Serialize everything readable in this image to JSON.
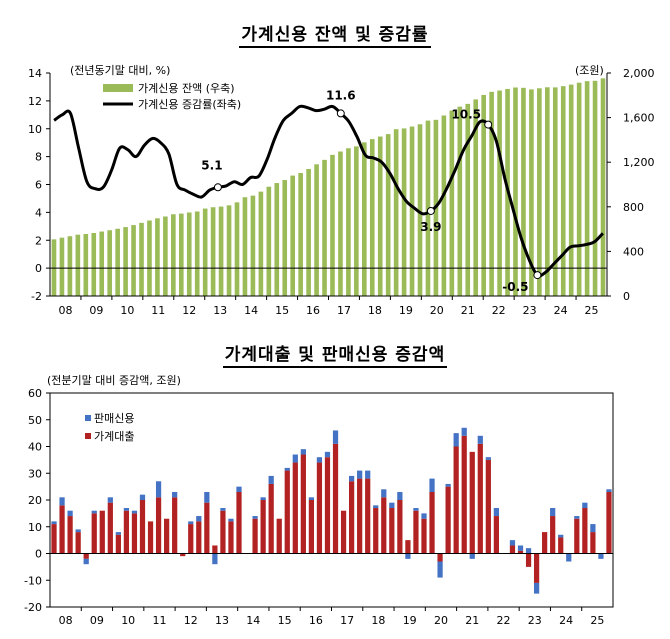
{
  "chart_data": [
    {
      "type": "bar+line",
      "title": "가계신용 잔액 및 증감률",
      "ylabel_left": "(전년동기말 대비, %)",
      "ylabel_right": "(조원)",
      "ylim_left": [
        -2,
        14
      ],
      "ylim_right": [
        0,
        2000
      ],
      "yticks_left": [
        "-2",
        "0",
        "2",
        "4",
        "6",
        "8",
        "10",
        "12",
        "14"
      ],
      "yticks_right": [
        "0",
        "400",
        "800",
        "1,200",
        "1,600",
        "2,000"
      ],
      "x_labels": [
        "08",
        "09",
        "10",
        "11",
        "12",
        "13",
        "14",
        "15",
        "16",
        "17",
        "18",
        "19",
        "20",
        "21",
        "22",
        "23",
        "24",
        "25"
      ],
      "legend": [
        "가계신용 잔액 (우축)",
        "가계신용 증감률(좌축)"
      ],
      "annotations": [
        {
          "label": "5.1",
          "index": 20
        },
        {
          "label": "11.6",
          "index": 35
        },
        {
          "label": "3.9",
          "index": 46
        },
        {
          "label": "10.5",
          "index": 53
        },
        {
          "label": "-0.5",
          "index": 59
        }
      ],
      "series": [
        {
          "name": "가계신용 잔액 (우축)",
          "kind": "bar",
          "axis": "right",
          "color": "#9bbb59",
          "values": [
            508,
            523,
            536,
            550,
            556,
            565,
            578,
            590,
            603,
            618,
            636,
            656,
            677,
            697,
            713,
            733,
            739,
            749,
            758,
            784,
            796,
            802,
            813,
            840,
            886,
            900,
            936,
            980,
            1013,
            1040,
            1080,
            1103,
            1139,
            1181,
            1221,
            1266,
            1296,
            1325,
            1342,
            1378,
            1407,
            1430,
            1452,
            1496,
            1503,
            1520,
            1540,
            1573,
            1580,
            1619,
            1663,
            1698,
            1723,
            1763,
            1803,
            1831,
            1843,
            1857,
            1870,
            1867,
            1853,
            1863,
            1872,
            1871,
            1882,
            1896,
            1913,
            1927,
            1930,
            1952
          ]
        },
        {
          "name": "가계신용 증감률(좌축)",
          "kind": "line",
          "axis": "left",
          "color": "#000000",
          "values": [
            10.6,
            11.0,
            11.1,
            8.6,
            6.2,
            5.7,
            5.8,
            7.0,
            8.6,
            8.5,
            8.0,
            8.8,
            9.3,
            9.0,
            8.2,
            6.0,
            5.6,
            5.3,
            5.1,
            5.6,
            5.8,
            5.9,
            6.2,
            6.0,
            6.5,
            6.6,
            7.8,
            9.4,
            10.6,
            11.1,
            11.6,
            11.5,
            11.3,
            11.4,
            11.6,
            11.1,
            10.5,
            9.4,
            8.1,
            7.9,
            7.6,
            6.8,
            5.7,
            4.8,
            4.3,
            3.9,
            4.1,
            4.7,
            5.8,
            7.1,
            8.5,
            9.5,
            10.5,
            10.3,
            9.1,
            6.5,
            4.3,
            2.2,
            0.6,
            -0.5,
            -0.3,
            0.3,
            0.9,
            1.5,
            1.6,
            1.7,
            1.9,
            2.5
          ]
        }
      ]
    },
    {
      "type": "stacked-bar",
      "title": "가계대출 및 판매신용 증감액",
      "ylabel": "(전분기말 대비 증감액, 조원)",
      "ylim": [
        -20,
        60
      ],
      "yticks": [
        "-20",
        "-10",
        "0",
        "10",
        "20",
        "30",
        "40",
        "50",
        "60"
      ],
      "x_labels": [
        "08",
        "09",
        "10",
        "11",
        "12",
        "13",
        "14",
        "15",
        "16",
        "17",
        "18",
        "19",
        "20",
        "21",
        "22",
        "23",
        "24",
        "25"
      ],
      "legend": [
        "판매신용",
        "가계대출"
      ],
      "series": [
        {
          "name": "가계대출",
          "color": "#b22222",
          "values": [
            11,
            18,
            14,
            8,
            -2,
            15,
            16,
            19,
            7,
            16,
            15,
            20,
            12,
            21,
            13,
            21,
            -1,
            11,
            12,
            19,
            3,
            16,
            12,
            23,
            0,
            13,
            20,
            26,
            13,
            31,
            34,
            37,
            20,
            34,
            36,
            41,
            16,
            27,
            28,
            28,
            17,
            21,
            17,
            20,
            5,
            16,
            13,
            23,
            -3,
            25,
            40,
            44,
            38,
            41,
            35,
            14,
            0,
            3,
            1,
            -5,
            -11,
            8,
            14,
            6,
            0,
            13,
            17,
            8,
            0,
            23
          ]
        },
        {
          "name": "판매신용",
          "color": "#4472c4",
          "values": [
            1,
            3,
            2,
            1,
            -2,
            1,
            0,
            2,
            1,
            1,
            1,
            2,
            0,
            6,
            0,
            2,
            0,
            1,
            2,
            4,
            -4,
            1,
            1,
            2,
            0,
            1,
            1,
            3,
            0,
            1,
            3,
            2,
            1,
            2,
            2,
            5,
            0,
            2,
            3,
            3,
            1,
            3,
            2,
            3,
            -2,
            1,
            2,
            5,
            -6,
            1,
            5,
            3,
            -2,
            3,
            1,
            3,
            0,
            2,
            2,
            2,
            -4,
            0,
            3,
            1,
            -3,
            1,
            2,
            3,
            -2,
            1
          ]
        }
      ]
    }
  ]
}
